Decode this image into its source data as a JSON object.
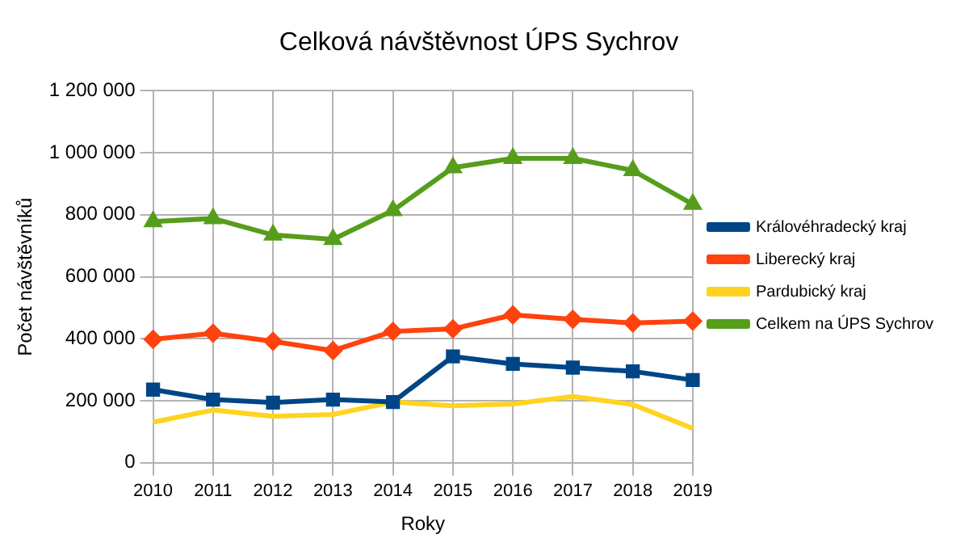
{
  "chart_data": {
    "type": "line",
    "title": "Celková návštěvnost ÚPS Sychrov",
    "xlabel": "Roky",
    "ylabel": "Počet návštěvníků",
    "categories": [
      "2010",
      "2011",
      "2012",
      "2013",
      "2014",
      "2015",
      "2016",
      "2017",
      "2018",
      "2019"
    ],
    "series": [
      {
        "name": "Královéhradecký kraj",
        "color": "#004586",
        "marker": "square",
        "values": [
          236000,
          204000,
          194000,
          204000,
          196000,
          343000,
          319000,
          307000,
          295000,
          267000
        ]
      },
      {
        "name": "Liberecký kraj",
        "color": "#ff420e",
        "marker": "diamond",
        "values": [
          398000,
          418000,
          392000,
          362000,
          424000,
          432000,
          477000,
          463000,
          451000,
          457000
        ]
      },
      {
        "name": "Pardubický kraj",
        "color": "#ffd320",
        "marker": "none",
        "values": [
          131000,
          170000,
          150000,
          156000,
          196000,
          184000,
          190000,
          214000,
          188000,
          111000
        ]
      },
      {
        "name": "Celkem na ÚPS Sychrov",
        "color": "#579d1c",
        "marker": "triangle",
        "values": [
          778000,
          788000,
          735000,
          721000,
          814000,
          952000,
          982000,
          982000,
          943000,
          834000
        ]
      }
    ],
    "ylim": [
      0,
      1200000
    ],
    "yticks": [
      0,
      {
        "value": 200000,
        "label": "200 000"
      },
      {
        "value": 400000,
        "label": "400 000"
      },
      {
        "value": 600000,
        "label": "600 000"
      },
      {
        "value": 800000,
        "label": "800 000"
      },
      {
        "value": 1000000,
        "label": "1 000 000"
      },
      {
        "value": 1200000,
        "label": "1 200 000"
      }
    ],
    "grid": true,
    "legend": "right"
  }
}
